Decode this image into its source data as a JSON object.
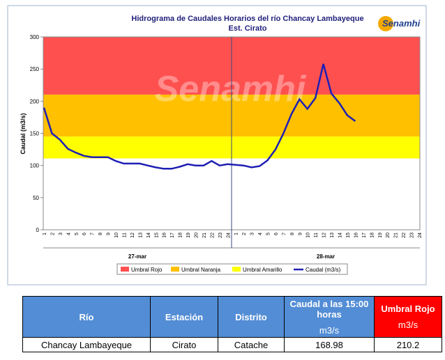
{
  "chart_data": {
    "type": "line",
    "title": "Hidrograma de Caudales Horarios del río Chancay Lambayeque",
    "subtitle": "Est. Cirato",
    "logo_text": "Senamhi",
    "y_label": "Caudal  (m3/s)",
    "categories": [
      "1",
      "2",
      "3",
      "4",
      "5",
      "6",
      "7",
      "8",
      "9",
      "10",
      "11",
      "12",
      "13",
      "14",
      "15",
      "16",
      "17",
      "18",
      "19",
      "20",
      "21",
      "22",
      "23",
      "24",
      "1",
      "2",
      "3",
      "4",
      "5",
      "6",
      "7",
      "8",
      "9",
      "10",
      "11",
      "12",
      "13",
      "14",
      "15",
      "16",
      "17",
      "18",
      "19",
      "20",
      "21",
      "22",
      "23",
      "24"
    ],
    "days": [
      {
        "label": "27-mar",
        "hours": 24
      },
      {
        "label": "28-mar",
        "hours": 24
      }
    ],
    "bands": [
      {
        "name": "Umbral Rojo",
        "color": "#ff5050",
        "value": 210.2
      },
      {
        "name": "Umbral Naranja",
        "color": "#ffc000",
        "value": 145
      },
      {
        "name": "Umbral Amarillo",
        "color": "#ffff00",
        "value": 111
      }
    ],
    "series": [
      {
        "name": "Caudal (m3/s)",
        "color": "#1f1fb4",
        "values": [
          190,
          150,
          140,
          126,
          120,
          115,
          113,
          113,
          113,
          107,
          103,
          103,
          103,
          100,
          97,
          95,
          95,
          98,
          102,
          100,
          100,
          107,
          100,
          102,
          101,
          100,
          97,
          99,
          108,
          125,
          150,
          180,
          203,
          188,
          205,
          258,
          212,
          197,
          178,
          169,
          null,
          null,
          null,
          null,
          null,
          null,
          null,
          null
        ]
      }
    ],
    "ylim": [
      0,
      300
    ],
    "yticks": [
      0,
      50,
      100,
      150,
      200,
      250,
      300
    ]
  },
  "table": {
    "header": [
      {
        "label": "Río"
      },
      {
        "label": "Estación"
      },
      {
        "label": "Distrito"
      },
      {
        "label": "Caudal a las 15:00 horas",
        "unit": "m3/s"
      },
      {
        "label": "Umbral Rojo",
        "unit": "m3/s"
      }
    ],
    "rows": [
      [
        "Chancay Lambayeque",
        "Cirato",
        "Catache",
        168.98,
        210.2
      ]
    ]
  }
}
